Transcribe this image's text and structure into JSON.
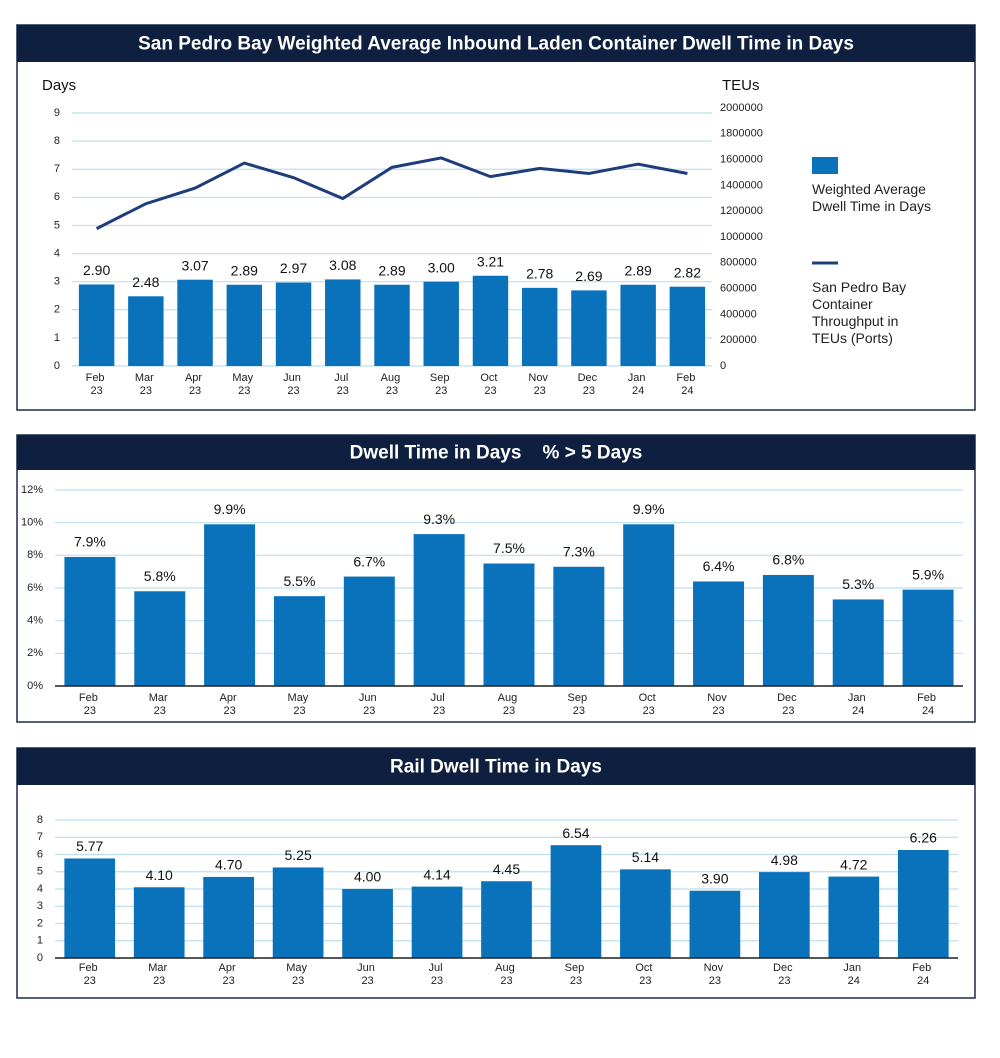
{
  "chart_data": [
    {
      "type": "bar",
      "title": "San Pedro Bay Weighted Average Inbound Laden Container Dwell Time in Days",
      "y_label": "Days",
      "y2_label": "TEUs",
      "categories": [
        "Feb 23",
        "Mar 23",
        "Apr 23",
        "May 23",
        "Jun 23",
        "Jul 23",
        "Aug 23",
        "Sep 23",
        "Oct 23",
        "Nov 23",
        "Dec 23",
        "Jan 24",
        "Feb 24"
      ],
      "series": [
        {
          "name": "Weighted Average Dwell Time in Days",
          "color": "#0a72ba",
          "values": [
            2.9,
            2.48,
            3.07,
            2.89,
            2.97,
            3.08,
            2.89,
            3.0,
            3.21,
            2.78,
            2.69,
            2.89,
            2.82
          ],
          "value_labels": [
            "2.90",
            "2.48",
            "3.07",
            "2.89",
            "2.97",
            "3.08",
            "2.89",
            "3.00",
            "3.21",
            "2.78",
            "2.69",
            "2.89",
            "2.82"
          ]
        },
        {
          "name": "San Pedro Bay Container Throughput in TEUs (Ports)",
          "color": "#1f3d7a",
          "type": "line",
          "axis": "y2",
          "values": [
            1065000,
            1258000,
            1379000,
            1573000,
            1460000,
            1298000,
            1540000,
            1613000,
            1468000,
            1532000,
            1492000,
            1565000,
            1492000
          ]
        }
      ],
      "ylim": [
        0,
        9
      ],
      "yticks": [
        0,
        1,
        2,
        3,
        4,
        5,
        6,
        7,
        8,
        9
      ],
      "y2lim": [
        0,
        2000000
      ],
      "y2ticks": [
        0,
        200000,
        400000,
        600000,
        800000,
        1000000,
        1200000,
        1400000,
        1600000,
        1800000,
        2000000
      ],
      "grid": true,
      "legend": "right"
    },
    {
      "type": "bar",
      "title": "Dwell Time in Days    % > 5 Days",
      "categories": [
        "Feb 23",
        "Mar 23",
        "Apr 23",
        "May 23",
        "Jun 23",
        "Jul 23",
        "Aug 23",
        "Sep 23",
        "Oct 23",
        "Nov 23",
        "Dec 23",
        "Jan 24",
        "Feb 24"
      ],
      "values": [
        7.9,
        5.8,
        9.9,
        5.5,
        6.7,
        9.3,
        7.5,
        7.3,
        9.9,
        6.4,
        6.8,
        5.3,
        5.9
      ],
      "value_labels": [
        "7.9%",
        "5.8%",
        "9.9%",
        "5.5%",
        "6.7%",
        "9.3%",
        "7.5%",
        "7.3%",
        "9.9%",
        "6.4%",
        "6.8%",
        "5.3%",
        "5.9%"
      ],
      "color": "#0a72ba",
      "ylim": [
        0,
        12
      ],
      "yticks": [
        {
          "value": 0,
          "label": "0%"
        },
        {
          "value": 2,
          "label": "2%"
        },
        {
          "value": 4,
          "label": "4%"
        },
        {
          "value": 6,
          "label": "6%"
        },
        {
          "value": 8,
          "label": "8%"
        },
        {
          "value": 10,
          "label": "10%"
        },
        {
          "value": 12,
          "label": "12%"
        }
      ],
      "grid": true
    },
    {
      "type": "bar",
      "title": "Rail Dwell Time in Days",
      "categories": [
        "Feb 23",
        "Mar 23",
        "Apr 23",
        "May 23",
        "Jun 23",
        "Jul 23",
        "Aug 23",
        "Sep 23",
        "Oct 23",
        "Nov 23",
        "Dec 23",
        "Jan 24",
        "Feb 24"
      ],
      "values": [
        5.77,
        4.1,
        4.7,
        5.25,
        4.0,
        4.14,
        4.45,
        6.54,
        5.14,
        3.9,
        4.98,
        4.72,
        6.26
      ],
      "value_labels": [
        "5.77",
        "4.10",
        "4.70",
        "5.25",
        "4.00",
        "4.14",
        "4.45",
        "6.54",
        "5.14",
        "3.90",
        "4.98",
        "4.72",
        "6.26"
      ],
      "color": "#0a72ba",
      "ylim": [
        0,
        8
      ],
      "yticks": [
        0,
        1,
        2,
        3,
        4,
        5,
        6,
        7,
        8
      ],
      "grid": true
    }
  ]
}
